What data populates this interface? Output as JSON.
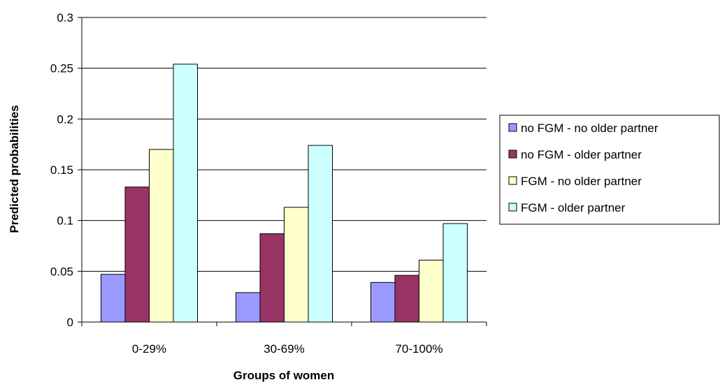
{
  "chart_data": {
    "type": "bar",
    "categories": [
      "0-29%",
      "30-69%",
      "70-100%"
    ],
    "series": [
      {
        "name": "no FGM - no older partner",
        "color": "#9999FF",
        "values": [
          0.047,
          0.029,
          0.039
        ]
      },
      {
        "name": "no FGM - older partner",
        "color": "#993366",
        "values": [
          0.133,
          0.087,
          0.046
        ]
      },
      {
        "name": "FGM - no older partner",
        "color": "#FFFFCC",
        "values": [
          0.17,
          0.113,
          0.061
        ]
      },
      {
        "name": "FGM - older partner",
        "color": "#CCFFFF",
        "values": [
          0.254,
          0.174,
          0.097
        ]
      }
    ],
    "xlabel": "Groups of women",
    "ylabel": "Predicted probabilities",
    "ylim": [
      0,
      0.3
    ],
    "yticks": [
      "0",
      "0.05",
      "0.1",
      "0.15",
      "0.2",
      "0.25",
      "0.3"
    ],
    "grid": true,
    "legend_position": "right"
  }
}
